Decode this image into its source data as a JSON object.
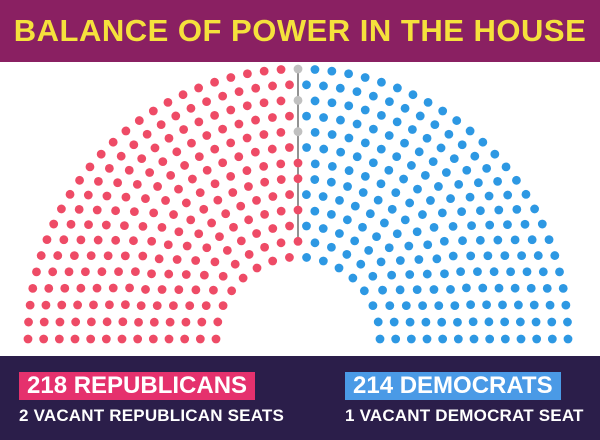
{
  "header": {
    "title": "BALANCE OF POWER IN THE HOUSE"
  },
  "footer": {
    "republicans": {
      "count_label": "218 REPUBLICANS",
      "vacant_label": "2 VACANT REPUBLICAN SEATS"
    },
    "democrats": {
      "count_label": "214 DEMOCRATS",
      "vacant_label": "1 VACANT DEMOCRAT SEAT"
    }
  },
  "colors": {
    "title_bar": "#8a2062",
    "title_text": "#f5e13c",
    "footer_bg": "#2b1e4a",
    "republican": "#ee4b66",
    "democrat": "#2d98e3",
    "vacant": "#c0c0c0",
    "republican_badge": "#e5316d",
    "democrat_badge": "#4a9ae6"
  },
  "chart_data": {
    "type": "parliament",
    "total_seats": 435,
    "series": [
      {
        "name": "Republicans",
        "values": [
          218
        ]
      },
      {
        "name": "Vacant Republican seats",
        "values": [
          2
        ]
      },
      {
        "name": "Vacant Democrat seat",
        "values": [
          1
        ]
      },
      {
        "name": "Democrats",
        "values": [
          214
        ]
      }
    ]
  }
}
